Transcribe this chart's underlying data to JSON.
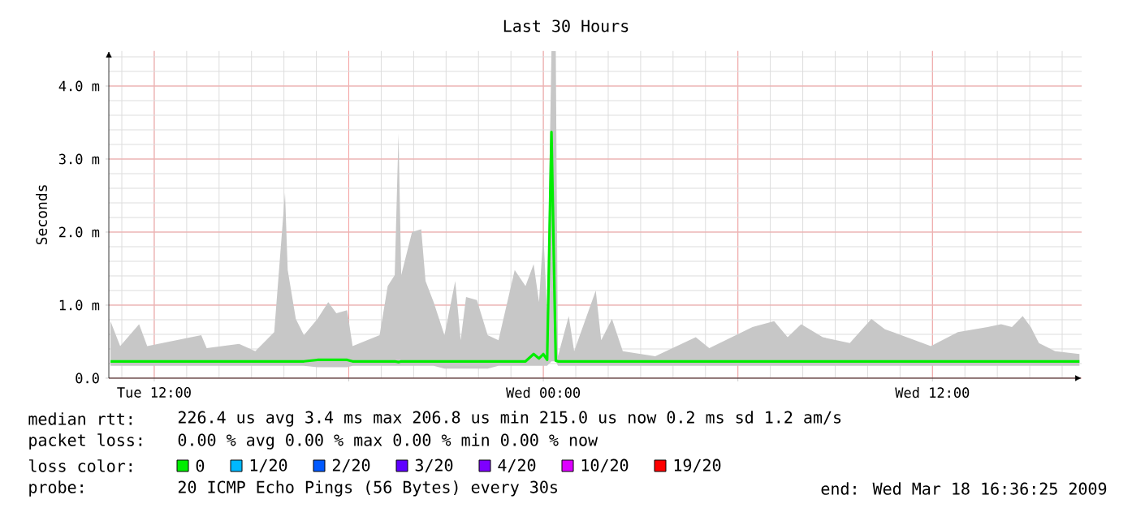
{
  "chart_data": {
    "type": "line",
    "title": "Last 30 Hours",
    "ylabel": "Seconds",
    "x": [
      "2009-03-17T10:39",
      "2009-03-17T10:57",
      "2009-03-17T11:32",
      "2009-03-17T11:47",
      "2009-03-17T13:27",
      "2009-03-17T13:37",
      "2009-03-17T14:37",
      "2009-03-17T15:07",
      "2009-03-17T15:42",
      "2009-03-17T16:02",
      "2009-03-17T16:07",
      "2009-03-17T16:22",
      "2009-03-17T16:37",
      "2009-03-17T17:02",
      "2009-03-17T17:22",
      "2009-03-17T17:37",
      "2009-03-17T17:57",
      "2009-03-17T18:07",
      "2009-03-17T18:57",
      "2009-03-17T19:12",
      "2009-03-17T19:25",
      "2009-03-17T19:32",
      "2009-03-17T19:37",
      "2009-03-17T19:57",
      "2009-03-17T20:14",
      "2009-03-17T20:22",
      "2009-03-17T20:37",
      "2009-03-17T20:57",
      "2009-03-17T21:17",
      "2009-03-17T21:27",
      "2009-03-17T21:37",
      "2009-03-17T21:57",
      "2009-03-17T22:17",
      "2009-03-17T22:37",
      "2009-03-17T23:07",
      "2009-03-17T23:27",
      "2009-03-17T23:42",
      "2009-03-17T23:52",
      "2009-03-18T00:00",
      "2009-03-18T00:07",
      "2009-03-18T00:15",
      "2009-03-18T00:23",
      "2009-03-18T00:27",
      "2009-03-18T00:47",
      "2009-03-18T00:57",
      "2009-03-18T01:37",
      "2009-03-18T01:47",
      "2009-03-18T02:07",
      "2009-03-18T02:27",
      "2009-03-18T03:27",
      "2009-03-18T04:42",
      "2009-03-18T05:07",
      "2009-03-18T06:27",
      "2009-03-18T07:07",
      "2009-03-18T07:32",
      "2009-03-18T07:57",
      "2009-03-18T08:37",
      "2009-03-18T09:27",
      "2009-03-18T10:07",
      "2009-03-18T10:32",
      "2009-03-18T10:47",
      "2009-03-18T11:57",
      "2009-03-18T12:47",
      "2009-03-18T13:42",
      "2009-03-18T14:07",
      "2009-03-18T14:27",
      "2009-03-18T14:47",
      "2009-03-18T15:02",
      "2009-03-18T15:17",
      "2009-03-18T15:47",
      "2009-03-18T16:32"
    ],
    "series": [
      {
        "name": "0",
        "color": "#00ee00",
        "values": [
          0.23,
          0.23,
          0.23,
          0.23,
          0.23,
          0.23,
          0.23,
          0.23,
          0.23,
          0.23,
          0.23,
          0.23,
          0.23,
          0.25,
          0.25,
          0.25,
          0.25,
          0.23,
          0.23,
          0.23,
          0.23,
          0.22,
          0.23,
          0.23,
          0.23,
          0.23,
          0.23,
          0.23,
          0.23,
          0.23,
          0.23,
          0.23,
          0.23,
          0.23,
          0.23,
          0.23,
          0.33,
          0.27,
          0.33,
          0.25,
          3.37,
          0.24,
          0.23,
          0.23,
          0.23,
          0.23,
          0.23,
          0.23,
          0.23,
          0.23,
          0.23,
          0.23,
          0.23,
          0.23,
          0.23,
          0.23,
          0.23,
          0.23,
          0.23,
          0.23,
          0.23,
          0.23,
          0.23,
          0.23,
          0.23,
          0.23,
          0.23,
          0.23,
          0.23,
          0.23,
          0.23
        ],
        "lower": [
          0.17,
          0.17,
          0.17,
          0.17,
          0.17,
          0.17,
          0.17,
          0.17,
          0.17,
          0.17,
          0.17,
          0.17,
          0.17,
          0.15,
          0.15,
          0.15,
          0.15,
          0.17,
          0.17,
          0.17,
          0.17,
          0.17,
          0.17,
          0.17,
          0.17,
          0.17,
          0.17,
          0.13,
          0.13,
          0.13,
          0.13,
          0.13,
          0.13,
          0.17,
          0.17,
          0.17,
          0.17,
          0.17,
          0.17,
          0.17,
          0.23,
          0.23,
          0.17,
          0.17,
          0.17,
          0.17,
          0.17,
          0.17,
          0.17,
          0.17,
          0.17,
          0.17,
          0.17,
          0.17,
          0.17,
          0.17,
          0.17,
          0.17,
          0.17,
          0.17,
          0.17,
          0.17,
          0.17,
          0.17,
          0.17,
          0.17,
          0.17,
          0.17,
          0.17,
          0.17,
          0.17
        ],
        "upper": [
          0.78,
          0.44,
          0.74,
          0.44,
          0.59,
          0.41,
          0.47,
          0.37,
          0.63,
          2.54,
          1.48,
          0.81,
          0.59,
          0.81,
          1.04,
          0.89,
          0.93,
          0.44,
          0.59,
          1.26,
          1.41,
          3.35,
          1.41,
          2.0,
          2.04,
          1.33,
          1.04,
          0.59,
          1.33,
          0.52,
          1.11,
          1.07,
          0.59,
          0.52,
          1.48,
          1.26,
          1.56,
          1.04,
          2.0,
          0.89,
          4.48,
          4.48,
          0.3,
          0.85,
          0.37,
          1.2,
          0.52,
          0.81,
          0.37,
          0.3,
          0.56,
          0.41,
          0.7,
          0.78,
          0.56,
          0.74,
          0.56,
          0.48,
          0.81,
          0.67,
          0.63,
          0.44,
          0.63,
          0.7,
          0.74,
          0.7,
          0.85,
          0.7,
          0.48,
          0.37,
          0.33
        ]
      },
      {
        "name": "1/20",
        "color": "#00b8ff",
        "values": [
          null,
          null,
          null,
          null,
          null,
          null,
          null,
          null,
          null,
          null,
          null,
          null,
          null,
          null,
          null,
          null,
          null,
          null,
          null,
          null,
          null,
          null,
          null,
          null,
          null,
          null,
          null,
          null,
          null,
          null,
          null,
          null,
          null,
          null,
          null,
          null,
          null,
          null,
          null,
          null,
          null,
          null,
          null,
          null,
          null,
          null,
          null,
          null,
          null,
          null,
          null,
          null,
          null,
          null,
          null,
          null,
          null,
          null,
          null,
          null,
          null,
          null,
          null,
          null,
          null,
          null,
          null,
          null,
          null,
          null,
          null
        ]
      },
      {
        "name": "2/20",
        "color": "#0059ff",
        "values": [
          null,
          null,
          null,
          null,
          null,
          null,
          null,
          null,
          null,
          null,
          null,
          null,
          null,
          null,
          null,
          null,
          null,
          null,
          null,
          null,
          null,
          null,
          null,
          null,
          null,
          null,
          null,
          null,
          null,
          null,
          null,
          null,
          null,
          null,
          null,
          null,
          null,
          null,
          null,
          null,
          null,
          null,
          null,
          null,
          null,
          null,
          null,
          null,
          null,
          null,
          null,
          null,
          null,
          null,
          null,
          null,
          null,
          null,
          null,
          null,
          null,
          null,
          null,
          null,
          null,
          null,
          null,
          null,
          null,
          null,
          null
        ]
      },
      {
        "name": "3/20",
        "color": "#5e00ff",
        "values": [
          null,
          null,
          null,
          null,
          null,
          null,
          null,
          null,
          null,
          null,
          null,
          null,
          null,
          null,
          null,
          null,
          null,
          null,
          null,
          null,
          null,
          null,
          null,
          null,
          null,
          null,
          null,
          null,
          null,
          null,
          null,
          null,
          null,
          null,
          null,
          null,
          null,
          null,
          null,
          null,
          null,
          null,
          null,
          null,
          null,
          null,
          null,
          null,
          null,
          null,
          null,
          null,
          null,
          null,
          null,
          null,
          null,
          null,
          null,
          null,
          null,
          null,
          null,
          null,
          null,
          null,
          null,
          null,
          null,
          null,
          null
        ]
      },
      {
        "name": "4/20",
        "color": "#7e00ff",
        "values": [
          null,
          null,
          null,
          null,
          null,
          null,
          null,
          null,
          null,
          null,
          null,
          null,
          null,
          null,
          null,
          null,
          null,
          null,
          null,
          null,
          null,
          null,
          null,
          null,
          null,
          null,
          null,
          null,
          null,
          null,
          null,
          null,
          null,
          null,
          null,
          null,
          null,
          null,
          null,
          null,
          null,
          null,
          null,
          null,
          null,
          null,
          null,
          null,
          null,
          null,
          null,
          null,
          null,
          null,
          null,
          null,
          null,
          null,
          null,
          null,
          null,
          null,
          null,
          null,
          null,
          null,
          null,
          null,
          null,
          null,
          null
        ]
      },
      {
        "name": "10/20",
        "color": "#dd00ff",
        "values": [
          null,
          null,
          null,
          null,
          null,
          null,
          null,
          null,
          null,
          null,
          null,
          null,
          null,
          null,
          null,
          null,
          null,
          null,
          null,
          null,
          null,
          null,
          null,
          null,
          null,
          null,
          null,
          null,
          null,
          null,
          null,
          null,
          null,
          null,
          null,
          null,
          null,
          null,
          null,
          null,
          null,
          null,
          null,
          null,
          null,
          null,
          null,
          null,
          null,
          null,
          null,
          null,
          null,
          null,
          null,
          null,
          null,
          null,
          null,
          null,
          null,
          null,
          null,
          null,
          null,
          null,
          null,
          null,
          null,
          null,
          null
        ]
      },
      {
        "name": "19/20",
        "color": "#ff0000",
        "values": [
          null,
          null,
          null,
          null,
          null,
          null,
          null,
          null,
          null,
          null,
          null,
          null,
          null,
          null,
          null,
          null,
          null,
          null,
          null,
          null,
          null,
          null,
          null,
          null,
          null,
          null,
          null,
          null,
          null,
          null,
          null,
          null,
          null,
          null,
          null,
          null,
          null,
          null,
          null,
          null,
          null,
          null,
          null,
          null,
          null,
          null,
          null,
          null,
          null,
          null,
          null,
          null,
          null,
          null,
          null,
          null,
          null,
          null,
          null,
          null,
          null,
          null,
          null,
          null,
          null,
          null,
          null,
          null,
          null,
          null,
          null
        ]
      }
    ],
    "xlim": [
      "2009-03-17T10:36",
      "2009-03-18T16:36"
    ],
    "ylim": [
      0,
      4.48
    ],
    "xticks": [
      {
        "value": "2009-03-17T12:00",
        "label": "Tue 12:00"
      },
      {
        "value": "2009-03-17T18:00",
        "label": null
      },
      {
        "value": "2009-03-18T00:00",
        "label": "Wed 00:00"
      },
      {
        "value": "2009-03-18T06:00",
        "label": null
      },
      {
        "value": "2009-03-18T12:00",
        "label": "Wed 12:00"
      }
    ],
    "yticks": [
      {
        "value": 0,
        "label": "0.0"
      },
      {
        "value": 1,
        "label": "1.0 m"
      },
      {
        "value": 2,
        "label": "2.0 m"
      },
      {
        "value": 3,
        "label": "3.0 m"
      },
      {
        "value": 4,
        "label": "4.0 m"
      }
    ],
    "grid": true,
    "legend": "bottom",
    "legend_title": "loss color:",
    "annotations": [
      "median rtt:",
      "226.4 us avg 3.4 ms max 206.8 us min 215.0 us now 0.2 ms sd 1.2 am/s",
      "packet loss:",
      "0.00 % avg 0.00 % max 0.00 % min 0.00 % now",
      "probe:",
      "20 ICMP Echo Pings (56 Bytes) every 30s",
      "end: Wed Mar 18 16:36:25 2009"
    ]
  }
}
